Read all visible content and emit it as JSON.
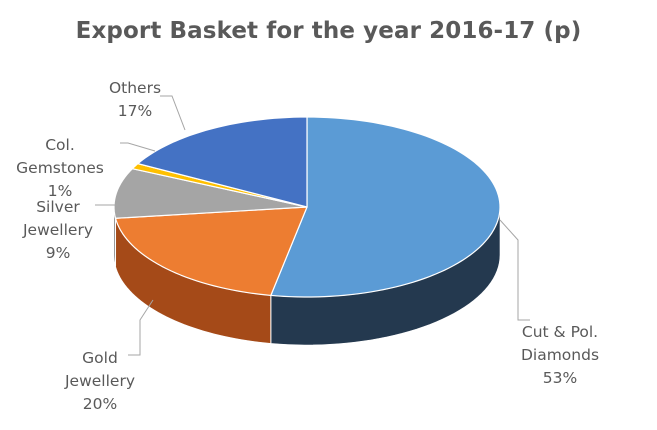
{
  "chart_data": {
    "type": "pie",
    "title": "Export Basket for the year 2016-17 (p)",
    "slices": [
      {
        "name": "Cut & Pol. Diamonds",
        "label_lines": [
          "Cut & Pol.",
          "Diamonds"
        ],
        "pct_label": "53%",
        "value": 53,
        "color": "#5b9bd5",
        "side_color": "#24394f"
      },
      {
        "name": "Gold Jewellery",
        "label_lines": [
          "Gold",
          "Jewellery"
        ],
        "pct_label": "20%",
        "value": 20,
        "color": "#ed7d31",
        "side_color": "#a54a18"
      },
      {
        "name": "Silver Jewellery",
        "label_lines": [
          "Silver",
          "Jewellery"
        ],
        "pct_label": "9%",
        "value": 9,
        "color": "#a5a5a5",
        "side_color": "#6f6f6f"
      },
      {
        "name": "Col. Gemstones",
        "label_lines": [
          "Col.",
          "Gemstones"
        ],
        "pct_label": "1%",
        "value": 1,
        "color": "#ffc000",
        "side_color": "#b08500"
      },
      {
        "name": "Others",
        "label_lines": [
          "Others"
        ],
        "pct_label": "17%",
        "value": 17,
        "color": "#4472c4",
        "side_color": "#2c4c86"
      }
    ],
    "legend": "none",
    "style": "3d-pie"
  }
}
